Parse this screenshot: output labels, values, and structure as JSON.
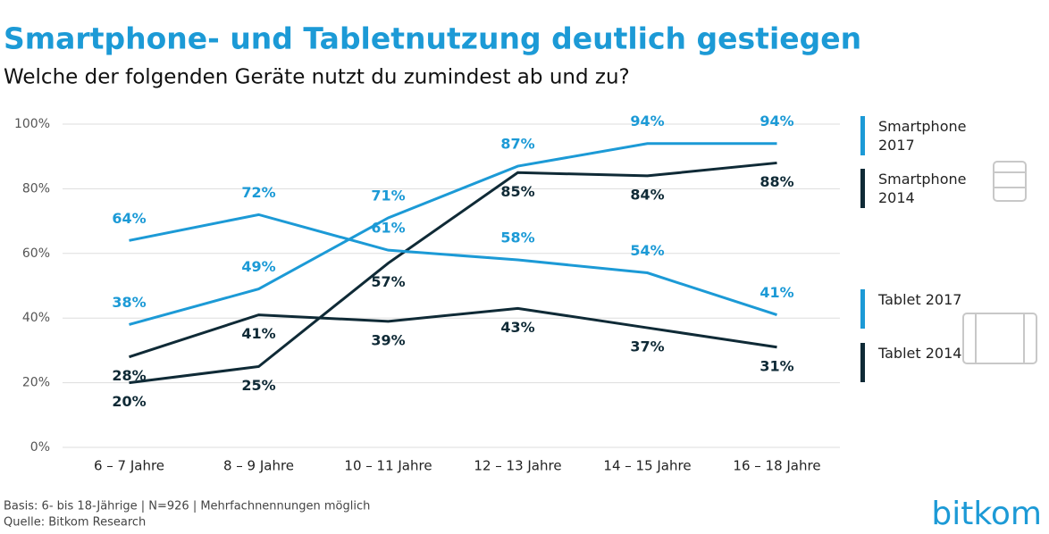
{
  "chart_data": {
    "type": "line",
    "title": "Smartphone- und Tabletnutzung deutlich gestiegen",
    "subtitle": "Welche der folgenden Geräte nutzt du zumindest ab und zu?",
    "categories": [
      "6 – 7 Jahre",
      "8 – 9 Jahre",
      "10 – 11 Jahre",
      "12 – 13 Jahre",
      "14 – 15 Jahre",
      "16 – 18 Jahre"
    ],
    "series": [
      {
        "name": "Smartphone 2017",
        "color": "#1c9ad6",
        "values": [
          38,
          49,
          71,
          87,
          94,
          94
        ],
        "value_labels": [
          "38%",
          "49%",
          "71%",
          "87%",
          "94%",
          "94%"
        ]
      },
      {
        "name": "Smartphone 2014",
        "color": "#0f2a36",
        "values": [
          20,
          25,
          57,
          85,
          84,
          88
        ],
        "value_labels": [
          "20%",
          "25%",
          "57%",
          "85%",
          "84%",
          "88%"
        ]
      },
      {
        "name": "Tablet 2017",
        "color": "#1c9ad6",
        "values": [
          64,
          72,
          61,
          58,
          54,
          41
        ],
        "value_labels": [
          "64%",
          "72%",
          "61%",
          "58%",
          "54%",
          "41%"
        ]
      },
      {
        "name": "Tablet 2014",
        "color": "#0f2a36",
        "values": [
          28,
          41,
          39,
          43,
          37,
          31
        ],
        "value_labels": [
          "28%",
          "41%",
          "39%",
          "43%",
          "37%",
          "31%"
        ]
      }
    ],
    "ylim": [
      0,
      100
    ],
    "yticks": [
      {
        "value": 0,
        "label": "0%"
      },
      {
        "value": 20,
        "label": "20%"
      },
      {
        "value": 40,
        "label": "40%"
      },
      {
        "value": 60,
        "label": "60%"
      },
      {
        "value": 80,
        "label": "80%"
      },
      {
        "value": 100,
        "label": "100%"
      }
    ],
    "grid": true,
    "footnote": "Basis: 6- bis 18-Jährige | N=926 | Mehrfachnennungen möglich",
    "source": "Quelle: Bitkom Research",
    "logo": "bitkom"
  }
}
